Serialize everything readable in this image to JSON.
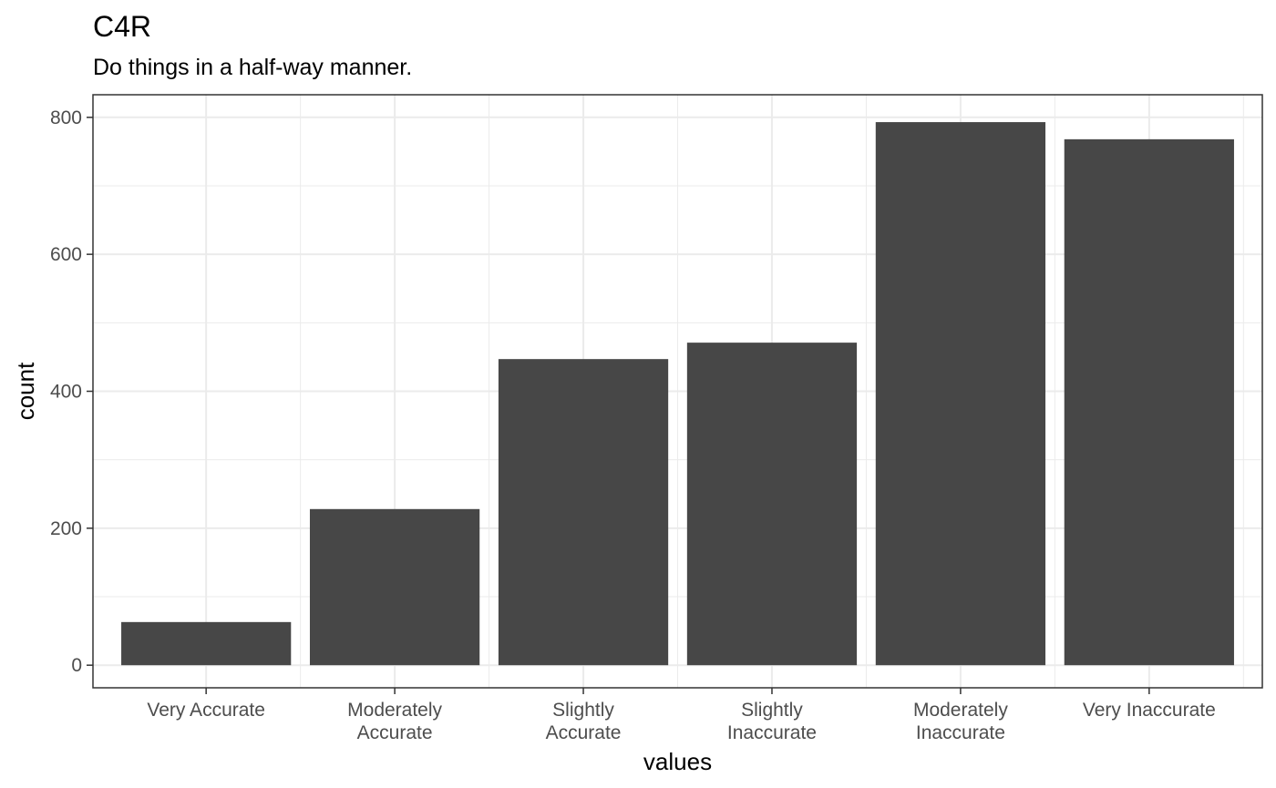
{
  "chart_data": {
    "type": "bar",
    "title": "C4R",
    "subtitle": "Do things in a half-way manner.",
    "xlabel": "values",
    "ylabel": "count",
    "categories": [
      [
        "Very Accurate"
      ],
      [
        "Moderately",
        "Accurate"
      ],
      [
        "Slightly",
        "Accurate"
      ],
      [
        "Slightly",
        "Inaccurate"
      ],
      [
        "Moderately",
        "Inaccurate"
      ],
      [
        "Very Inaccurate"
      ]
    ],
    "values": [
      63,
      228,
      447,
      471,
      793,
      768
    ],
    "ylim": [
      -33,
      833
    ],
    "yticks": [
      0,
      200,
      400,
      600,
      800
    ],
    "yticks_minor": [
      100,
      300,
      500,
      700
    ],
    "grid": true,
    "bar_color": "#474747",
    "grid_color": "#ebebeb",
    "panel_border_color": "#333333"
  }
}
